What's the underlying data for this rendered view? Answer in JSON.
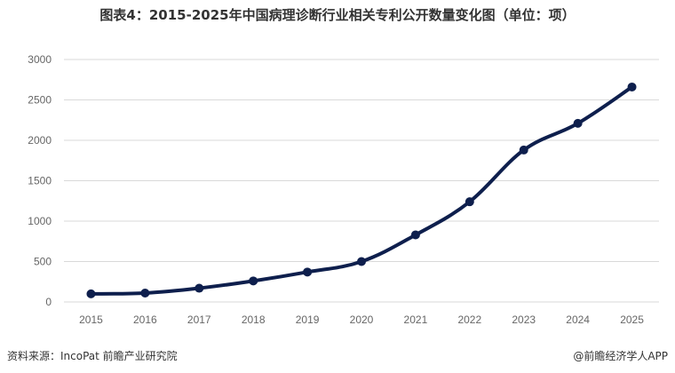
{
  "chart_data": {
    "type": "line",
    "title": "图表4：2015-2025年中国病理诊断行业相关专利公开数量变化图（单位：项）",
    "categories": [
      "2015",
      "2016",
      "2017",
      "2018",
      "2019",
      "2020",
      "2021",
      "2022",
      "2023",
      "2024",
      "2025"
    ],
    "series": [
      {
        "values": [
          100,
          110,
          170,
          260,
          370,
          500,
          830,
          1240,
          1880,
          2210,
          2660
        ]
      }
    ],
    "ylim": [
      0,
      3000
    ],
    "yticks": [
      "0",
      "500",
      "1000",
      "1500",
      "2000",
      "2500",
      "3000"
    ],
    "xlabel": "",
    "ylabel": "",
    "grid": true,
    "legend": "none",
    "line_color": "#0e1f4d"
  },
  "footer": {
    "source": "资料来源：IncoPat 前瞻产业研究院",
    "credit": "@前瞻经济学人APP"
  }
}
